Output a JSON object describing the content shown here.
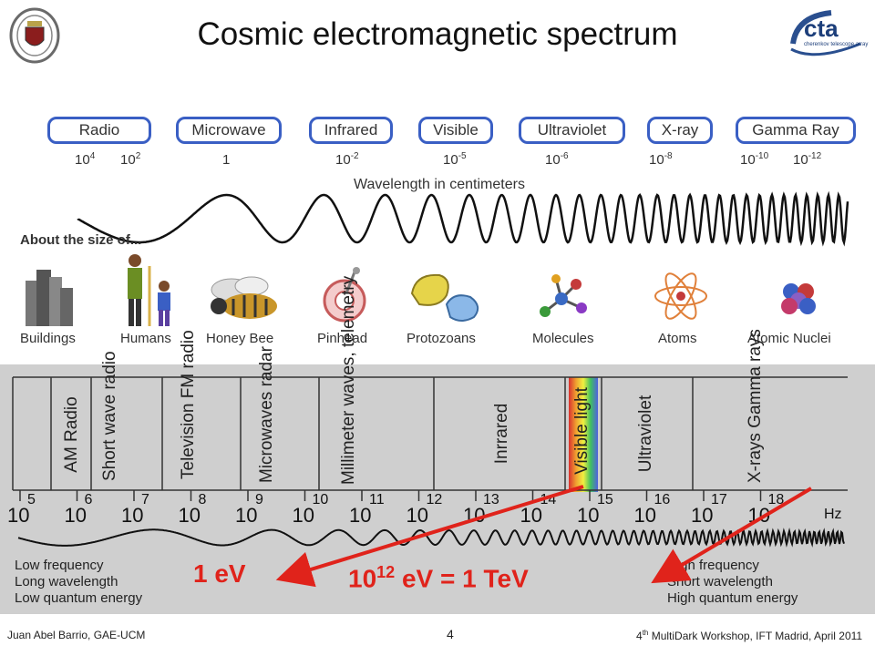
{
  "title": "Cosmic electromagnetic spectrum",
  "bands": [
    "Radio",
    "Microwave",
    "Infrared",
    "Visible",
    "Ultraviolet",
    "X-ray",
    "Gamma Ray"
  ],
  "wavelengths": [
    {
      "base": "10",
      "exp": "4"
    },
    {
      "base": "10",
      "exp": "2"
    },
    {
      "base": "1",
      "exp": ""
    },
    {
      "base": "10",
      "exp": "-2"
    },
    {
      "base": "10",
      "exp": "-5"
    },
    {
      "base": "10",
      "exp": "-6"
    },
    {
      "base": "10",
      "exp": "-8"
    },
    {
      "base": "10",
      "exp": "-10"
    },
    {
      "base": "10",
      "exp": "-12"
    }
  ],
  "wavelength_label": "Wavelength in centimeters",
  "about_label": "About the size of...",
  "objects": [
    "Buildings",
    "Humans",
    "Honey Bee",
    "Pinhead",
    "Protozoans",
    "Molecules",
    "Atoms",
    "Atomic Nuclei"
  ],
  "freq_bands": [
    "AM Radio",
    "Short wave radio",
    "Television FM radio",
    "Microwaves radar",
    "Millimeter waves, telemetry",
    "Inrrared",
    "Visible light",
    "Ultraviolet",
    "X-rays Gamma rays"
  ],
  "freq_exponents": [
    "5",
    "6",
    "7",
    "8",
    "9",
    "10",
    "11",
    "12",
    "13",
    "14",
    "15",
    "16",
    "17",
    "18"
  ],
  "freq_base": "10",
  "hz": "Hz",
  "left_legend": [
    "Low frequency",
    "Long wavelength",
    "Low quantum energy"
  ],
  "right_legend": [
    "High frequency",
    "Short wavelength",
    "High quantum energy"
  ],
  "energy_low": "1 eV",
  "energy_high_base": "10",
  "energy_high_exp": "12",
  "energy_high_rest": " eV = 1 TeV",
  "footer_left": "Juan Abel Barrio, GAE-UCM",
  "page_number": "4",
  "footer_right_ordinal": "4",
  "footer_right_sup": "th",
  "footer_right_rest": " MultiDark Workshop, IFT Madrid, April 2011",
  "logo_right_text": "cta",
  "logo_right_sub": "cherenkov telescope array"
}
